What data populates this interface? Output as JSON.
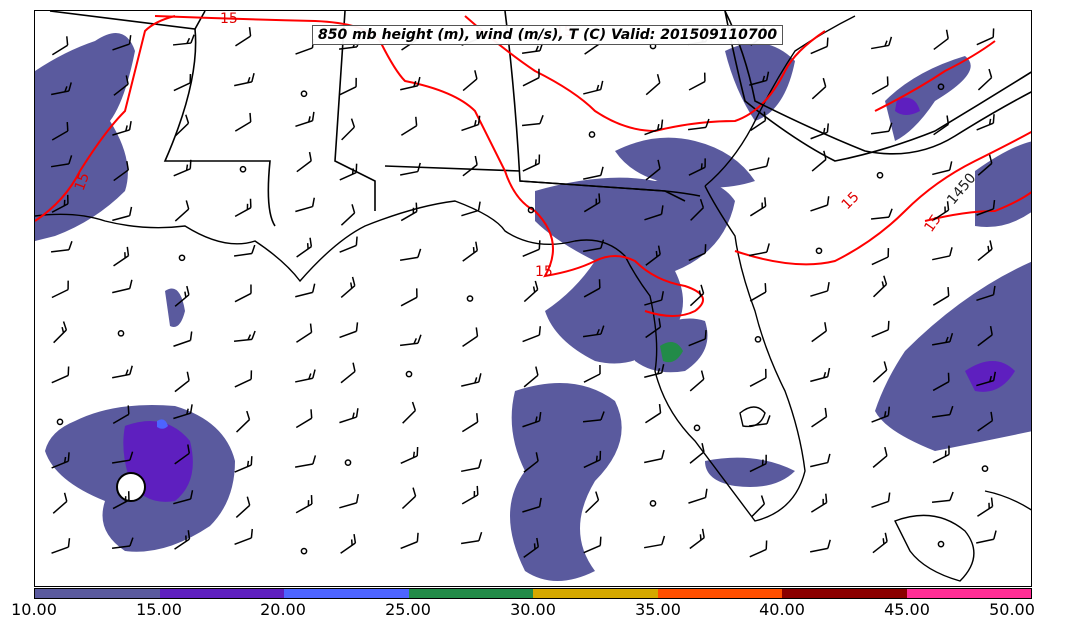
{
  "title": "850 mb height (m), wind (m/s), T (C) Valid: 201509110700",
  "colorbar": {
    "colors": [
      "#5a5a9e",
      "#5e1fbf",
      "#4d64ff",
      "#228b48",
      "#d4a800",
      "#ff4f00",
      "#8b0000",
      "#ff2d95"
    ],
    "tick_labels": [
      "10.00",
      "15.00",
      "20.00",
      "25.00",
      "30.00",
      "35.00",
      "40.00",
      "45.00",
      "50.00"
    ]
  },
  "contour_labels": {
    "temp_labels": [
      "15",
      "15",
      "15",
      "15",
      "15",
      "15"
    ],
    "height_label": "1450"
  },
  "colors": {
    "temperature_contour": "#ff0000",
    "height_contour": "#000000",
    "coastline": "#000000",
    "precip_base": "#5a5a9e"
  }
}
